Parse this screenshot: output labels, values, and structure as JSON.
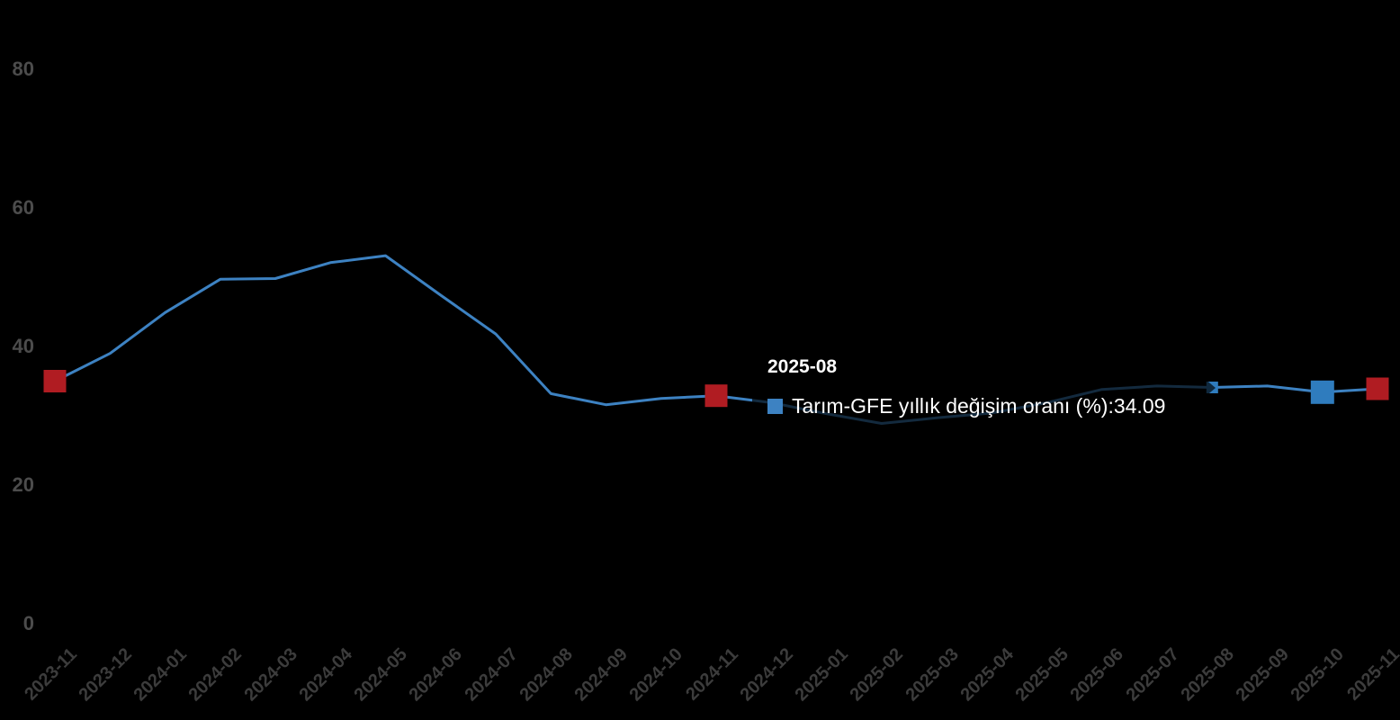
{
  "chart_data": {
    "type": "line",
    "title": "",
    "xlabel": "",
    "ylabel": "",
    "categories": [
      "2023-11",
      "2023-12",
      "2024-01",
      "2024-02",
      "2024-03",
      "2024-04",
      "2024-05",
      "2024-06",
      "2024-07",
      "2024-08",
      "2024-09",
      "2024-10",
      "2024-11",
      "2024-12",
      "2025-01",
      "2025-02",
      "2025-03",
      "2025-04",
      "2025-05",
      "2025-06",
      "2025-07",
      "2025-08",
      "2025-09",
      "2025-10",
      "2025-11"
    ],
    "series": [
      {
        "name": "Tarım-GFE yıllık değişim oranı (%)",
        "color": "#3d82c2",
        "values": [
          35.0,
          39.0,
          44.9,
          49.7,
          49.8,
          52.1,
          53.1,
          47.4,
          41.8,
          33.2,
          31.6,
          32.5,
          32.9,
          31.9,
          30.3,
          28.9,
          29.7,
          30.4,
          31.9,
          33.8,
          34.3,
          34.09,
          34.3,
          33.4,
          33.9
        ]
      }
    ],
    "yticks": [
      0,
      20,
      40,
      60,
      80
    ],
    "ylim": [
      0,
      85
    ],
    "grid": false,
    "legend_position": "none",
    "background": "#000000",
    "markers": [
      {
        "category": "2023-11",
        "color": "#b01c22",
        "size": 25,
        "state": "normal"
      },
      {
        "category": "2024-11",
        "color": "#b01c22",
        "size": 25,
        "state": "normal"
      },
      {
        "category": "2025-08",
        "color": "#2f7cbe",
        "size": 13,
        "state": "hover"
      },
      {
        "category": "2025-10",
        "color": "#2f7cbe",
        "size": 26,
        "state": "normal"
      },
      {
        "category": "2025-11",
        "color": "#b01c22",
        "size": 25,
        "state": "normal"
      }
    ]
  },
  "tooltip": {
    "title": "2025-08",
    "series_label": "Tarım-GFE yıllık değişim oranı (%)",
    "separator": ": ",
    "value": "34.09"
  },
  "colors": {
    "y_axis_label": "#4c4c4c",
    "x_axis_label": "#3c3c3c",
    "tooltip_text": "#ffffff"
  }
}
